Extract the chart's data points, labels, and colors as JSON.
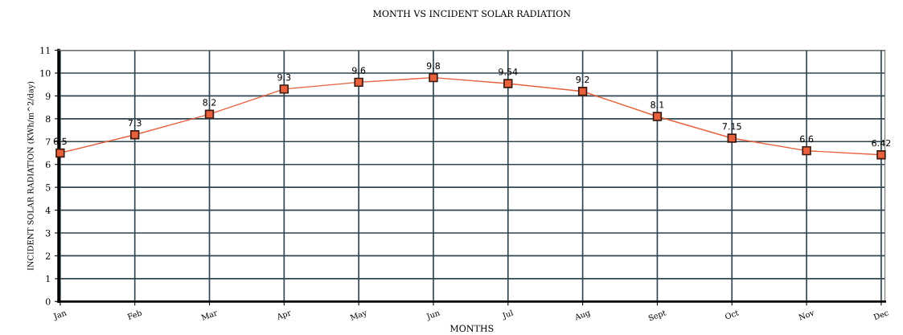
{
  "chart_data": {
    "type": "line",
    "title": "MONTH VS INCIDENT SOLAR RADIATION",
    "xlabel": "MONTHS",
    "ylabel": "INCIDENT SOLAR RADIATION (KWh/m^2/day)",
    "categories": [
      "Jan",
      "Feb",
      "Mar",
      "Apr",
      "May",
      "Jun",
      "Jul",
      "Aug",
      "Sept",
      "Oct",
      "Nov",
      "Dec"
    ],
    "series": [
      {
        "color": "#e8603c",
        "values": [
          6.5,
          7.3,
          8.2,
          9.3,
          9.6,
          9.8,
          9.54,
          9.2,
          8.1,
          7.15,
          6.6,
          6.42
        ]
      }
    ],
    "ylim": [
      0,
      11
    ],
    "yticks": [
      0,
      1,
      2,
      3,
      4,
      5,
      6,
      7,
      8,
      9,
      10,
      11
    ],
    "grid": true,
    "marker": "square",
    "data_labels": true
  }
}
